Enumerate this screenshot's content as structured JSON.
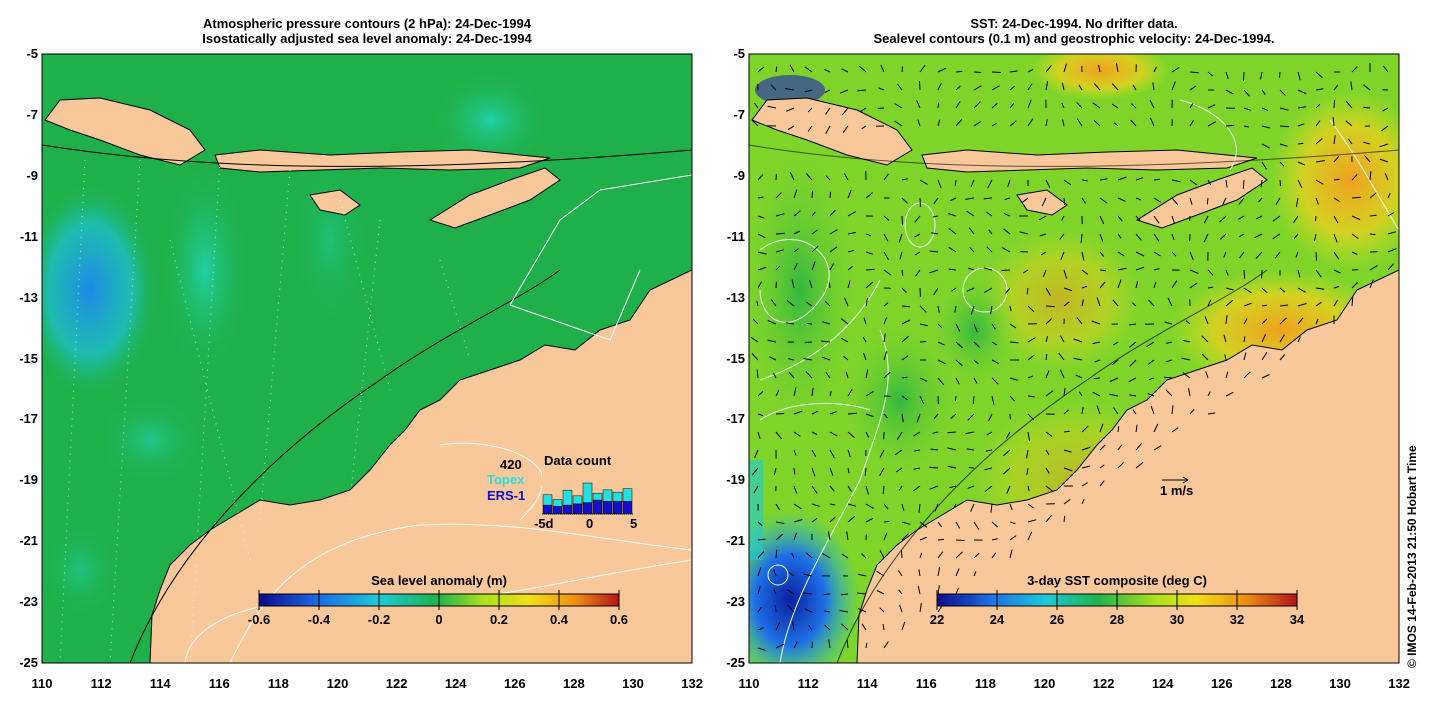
{
  "left_panel": {
    "title_line1": "Atmospheric pressure contours (2 hPa): 24-Dec-1994",
    "title_line2": "Isostatically adjusted sea level anomaly: 24-Dec-1994",
    "colorbar": {
      "title": "Sea level anomaly (m)",
      "ticks": [
        "-0.6",
        "-0.4",
        "-0.2",
        "0",
        "0.2",
        "0.4",
        "0.6"
      ]
    },
    "inset": {
      "title": "Data count",
      "max_label": "420",
      "series": [
        "Topex",
        "ERS-1"
      ],
      "x_ticks": [
        "-5d",
        "0",
        "5"
      ],
      "series_colors": {
        "Topex": "#22e0e0",
        "ERS-1": "#1010cc"
      },
      "bars": [
        {
          "day": -4,
          "topex": 0.45,
          "ers": 0.35
        },
        {
          "day": -3,
          "topex": 0.3,
          "ers": 0.3
        },
        {
          "day": -2,
          "topex": 0.65,
          "ers": 0.35
        },
        {
          "day": -1,
          "topex": 0.35,
          "ers": 0.4
        },
        {
          "day": 0,
          "topex": 0.85,
          "ers": 0.45
        },
        {
          "day": 1,
          "topex": 0.3,
          "ers": 0.55
        },
        {
          "day": 2,
          "topex": 0.5,
          "ers": 0.5
        },
        {
          "day": 3,
          "topex": 0.4,
          "ers": 0.5
        },
        {
          "day": 4,
          "topex": 0.55,
          "ers": 0.5
        }
      ]
    }
  },
  "right_panel": {
    "title_line1": "SST: 24-Dec-1994. No drifter data.",
    "title_line2": "Sealevel contours (0.1 m) and geostrophic velocity: 24-Dec-1994.",
    "colorbar": {
      "title": "3-day SST composite (deg C)",
      "ticks": [
        "22",
        "24",
        "26",
        "28",
        "30",
        "32",
        "34"
      ]
    },
    "velocity_scale_label": "1 m/s"
  },
  "axes": {
    "x_ticks": [
      "110",
      "112",
      "114",
      "116",
      "118",
      "120",
      "122",
      "124",
      "126",
      "128",
      "130",
      "132"
    ],
    "y_ticks": [
      "-5",
      "-7",
      "-9",
      "-11",
      "-13",
      "-15",
      "-17",
      "-19",
      "-21",
      "-23",
      "-25"
    ]
  },
  "credit": "© IMOS 14-Feb-2013 21:50 Hobart Time",
  "colors": {
    "land": "#f9c89a",
    "sla_ocean": "#1fb04a",
    "sst_ocean": "#7fd42a"
  }
}
